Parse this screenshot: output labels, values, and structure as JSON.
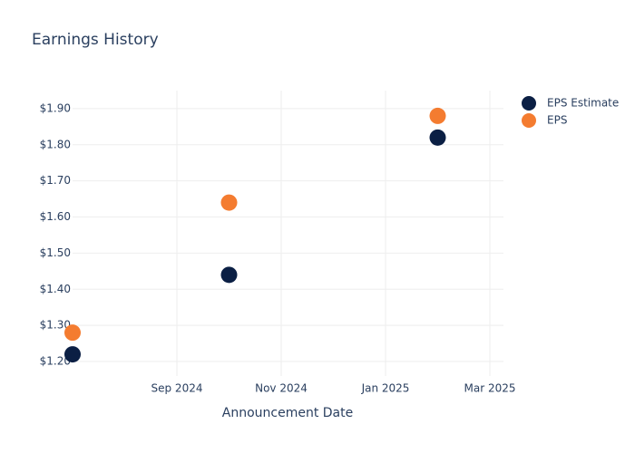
{
  "chart_data": {
    "type": "scatter",
    "title": "Earnings History",
    "x_label": "Announcement Date",
    "x": [
      "2024-07",
      "2024-10",
      "2025-02"
    ],
    "series": [
      {
        "name": "EPS Estimate",
        "color": "#0b1f44",
        "values": [
          1.22,
          1.44,
          1.82
        ]
      },
      {
        "name": "EPS",
        "color": "#f47c30",
        "values": [
          1.28,
          1.64,
          1.88
        ]
      }
    ],
    "xlim": [
      "2024-07",
      "2025-03"
    ],
    "xticks": [
      {
        "value": "2024-09",
        "label": "Sep 2024"
      },
      {
        "value": "2024-11",
        "label": "Nov 2024"
      },
      {
        "value": "2025-01",
        "label": "Jan 2025"
      },
      {
        "value": "2025-03",
        "label": "Mar 2025"
      }
    ],
    "ylim": [
      1.16,
      1.95
    ],
    "yticks": [
      {
        "value": 1.2,
        "label": "$1.20"
      },
      {
        "value": 1.3,
        "label": "$1.30"
      },
      {
        "value": 1.4,
        "label": "$1.40"
      },
      {
        "value": 1.5,
        "label": "$1.50"
      },
      {
        "value": 1.6,
        "label": "$1.60"
      },
      {
        "value": 1.7,
        "label": "$1.70"
      },
      {
        "value": 1.8,
        "label": "$1.80"
      },
      {
        "value": 1.9,
        "label": "$1.90"
      }
    ],
    "grid": true,
    "legend": "top-right"
  }
}
